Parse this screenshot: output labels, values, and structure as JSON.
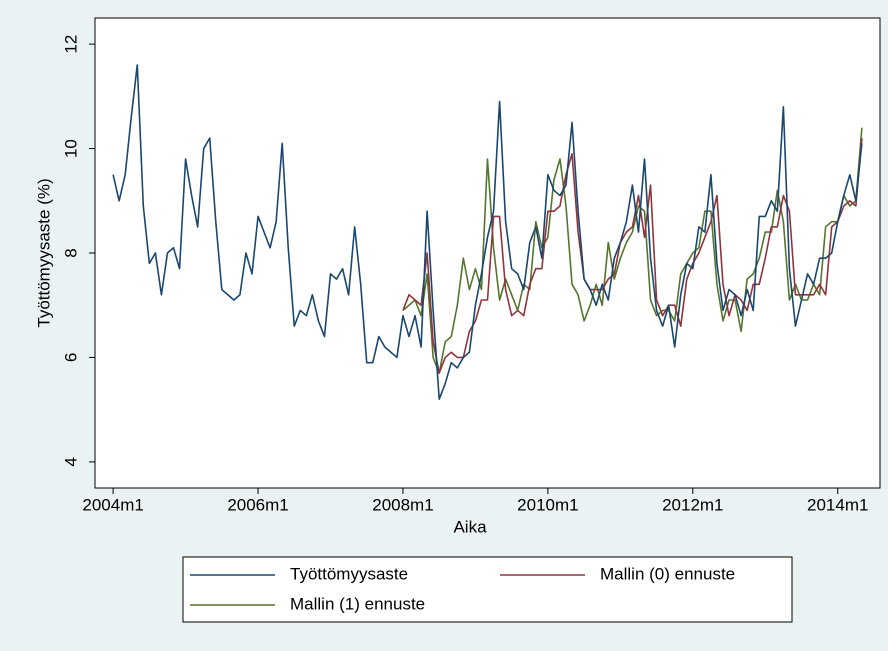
{
  "chart_data": {
    "type": "line",
    "x": [
      "2004m1",
      "2004m2",
      "2004m3",
      "2004m4",
      "2004m5",
      "2004m6",
      "2004m7",
      "2004m8",
      "2004m9",
      "2004m10",
      "2004m11",
      "2004m12",
      "2005m1",
      "2005m2",
      "2005m3",
      "2005m4",
      "2005m5",
      "2005m6",
      "2005m7",
      "2005m8",
      "2005m9",
      "2005m10",
      "2005m11",
      "2005m12",
      "2006m1",
      "2006m2",
      "2006m3",
      "2006m4",
      "2006m5",
      "2006m6",
      "2006m7",
      "2006m8",
      "2006m9",
      "2006m10",
      "2006m11",
      "2006m12",
      "2007m1",
      "2007m2",
      "2007m3",
      "2007m4",
      "2007m5",
      "2007m6",
      "2007m7",
      "2007m8",
      "2007m9",
      "2007m10",
      "2007m11",
      "2007m12",
      "2008m1",
      "2008m2",
      "2008m3",
      "2008m4",
      "2008m5",
      "2008m6",
      "2008m7",
      "2008m8",
      "2008m9",
      "2008m10",
      "2008m11",
      "2008m12",
      "2009m1",
      "2009m2",
      "2009m3",
      "2009m4",
      "2009m5",
      "2009m6",
      "2009m7",
      "2009m8",
      "2009m9",
      "2009m10",
      "2009m11",
      "2009m12",
      "2010m1",
      "2010m2",
      "2010m3",
      "2010m4",
      "2010m5",
      "2010m6",
      "2010m7",
      "2010m8",
      "2010m9",
      "2010m10",
      "2010m11",
      "2010m12",
      "2011m1",
      "2011m2",
      "2011m3",
      "2011m4",
      "2011m5",
      "2011m6",
      "2011m7",
      "2011m8",
      "2011m9",
      "2011m10",
      "2011m11",
      "2011m12",
      "2012m1",
      "2012m2",
      "2012m3",
      "2012m4",
      "2012m5",
      "2012m6",
      "2012m7",
      "2012m8",
      "2012m9",
      "2012m10",
      "2012m11",
      "2012m12",
      "2013m1",
      "2013m2",
      "2013m3",
      "2013m4",
      "2013m5",
      "2013m6",
      "2013m7",
      "2013m8",
      "2013m9",
      "2013m10",
      "2013m11",
      "2013m12",
      "2014m1",
      "2014m2",
      "2014m3",
      "2014m4",
      "2014m5"
    ],
    "series": [
      {
        "name": "Työttömyysaste",
        "color": "#1a476f",
        "values": [
          9.5,
          9.0,
          9.5,
          10.6,
          11.6,
          8.9,
          7.8,
          8.0,
          7.2,
          8.0,
          8.1,
          7.7,
          9.8,
          9.1,
          8.5,
          10.0,
          10.2,
          8.6,
          7.3,
          7.2,
          7.1,
          7.2,
          8.0,
          7.6,
          8.7,
          8.4,
          8.1,
          8.6,
          10.1,
          8.1,
          6.6,
          6.9,
          6.8,
          7.2,
          6.7,
          6.4,
          7.6,
          7.5,
          7.7,
          7.2,
          8.5,
          7.4,
          5.9,
          5.9,
          6.4,
          6.2,
          6.1,
          6.0,
          6.8,
          6.4,
          6.8,
          6.2,
          8.8,
          6.9,
          5.2,
          5.5,
          5.9,
          5.8,
          6.0,
          6.1,
          7.0,
          7.6,
          8.3,
          8.8,
          10.9,
          8.6,
          7.7,
          7.6,
          7.3,
          8.2,
          8.5,
          7.9,
          9.5,
          9.2,
          9.1,
          9.3,
          10.5,
          8.8,
          7.5,
          7.3,
          7.0,
          7.4,
          7.1,
          7.9,
          8.2,
          8.6,
          9.3,
          8.4,
          9.8,
          7.9,
          6.9,
          6.6,
          7.0,
          6.2,
          7.2,
          7.8,
          7.7,
          8.5,
          8.4,
          9.5,
          7.8,
          6.9,
          7.3,
          7.2,
          6.8,
          7.3,
          6.9,
          8.7,
          8.7,
          9.0,
          8.8,
          10.8,
          7.7,
          6.6,
          7.1,
          7.6,
          7.4,
          7.9,
          7.9,
          8.0,
          8.6,
          9.1,
          9.5,
          9.0,
          10.1
        ]
      },
      {
        "name": "Mallin (0) ennuste",
        "color": "#90353b",
        "values": [
          null,
          null,
          null,
          null,
          null,
          null,
          null,
          null,
          null,
          null,
          null,
          null,
          null,
          null,
          null,
          null,
          null,
          null,
          null,
          null,
          null,
          null,
          null,
          null,
          null,
          null,
          null,
          null,
          null,
          null,
          null,
          null,
          null,
          null,
          null,
          null,
          null,
          null,
          null,
          null,
          null,
          null,
          null,
          null,
          null,
          null,
          null,
          null,
          6.9,
          7.2,
          7.1,
          7.0,
          8.0,
          6.3,
          5.7,
          6.0,
          6.1,
          6.0,
          6.0,
          6.5,
          6.7,
          7.1,
          7.1,
          8.7,
          8.7,
          7.3,
          6.8,
          6.9,
          6.8,
          7.4,
          7.7,
          7.7,
          8.8,
          8.8,
          8.9,
          9.5,
          9.9,
          8.4,
          7.5,
          7.3,
          7.3,
          7.3,
          7.5,
          7.6,
          8.2,
          8.4,
          8.5,
          9.1,
          8.3,
          9.3,
          7.1,
          6.8,
          7.0,
          7.0,
          6.6,
          7.5,
          7.8,
          8.0,
          8.3,
          8.6,
          9.1,
          7.4,
          6.8,
          7.2,
          7.1,
          6.9,
          7.4,
          7.4,
          7.9,
          8.5,
          8.5,
          9.1,
          8.8,
          7.2,
          7.2,
          7.2,
          7.2,
          7.4,
          7.2,
          8.5,
          8.6,
          8.9,
          9.0,
          8.9,
          10.2
        ]
      },
      {
        "name": "Mallin (1) ennuste",
        "color": "#55752f",
        "values": [
          null,
          null,
          null,
          null,
          null,
          null,
          null,
          null,
          null,
          null,
          null,
          null,
          null,
          null,
          null,
          null,
          null,
          null,
          null,
          null,
          null,
          null,
          null,
          null,
          null,
          null,
          null,
          null,
          null,
          null,
          null,
          null,
          null,
          null,
          null,
          null,
          null,
          null,
          null,
          null,
          null,
          null,
          null,
          null,
          null,
          null,
          null,
          null,
          6.9,
          7.0,
          7.1,
          6.8,
          7.6,
          6.0,
          5.7,
          6.3,
          6.4,
          7.0,
          7.9,
          7.3,
          7.7,
          7.3,
          9.8,
          8.1,
          7.1,
          7.5,
          7.2,
          6.9,
          7.4,
          7.3,
          8.6,
          8.1,
          8.3,
          9.4,
          9.8,
          8.9,
          7.4,
          7.2,
          6.7,
          7.0,
          7.4,
          7.0,
          8.2,
          7.5,
          7.9,
          8.2,
          8.4,
          8.9,
          8.8,
          7.1,
          6.8,
          6.9,
          6.9,
          6.7,
          7.6,
          7.8,
          8.0,
          8.1,
          8.8,
          8.8,
          7.4,
          6.7,
          7.1,
          7.1,
          6.5,
          7.5,
          7.6,
          7.9,
          8.4,
          8.4,
          9.2,
          8.6,
          7.1,
          7.4,
          7.1,
          7.1,
          7.4,
          7.2,
          8.5,
          8.6,
          8.6,
          9.1,
          8.9,
          9.0,
          10.4
        ]
      }
    ],
    "xlabel": "Aika",
    "ylabel": "Työttömyysaste (%)",
    "xlim": [
      "2003m10",
      "2014m8"
    ],
    "xticks": [
      "2004m1",
      "2006m1",
      "2008m1",
      "2010m1",
      "2012m1",
      "2014m1"
    ],
    "ylim": [
      3.5,
      12.5
    ],
    "yticks": [
      4,
      6,
      8,
      10,
      12
    ],
    "grid": false,
    "legend": "bottom"
  }
}
